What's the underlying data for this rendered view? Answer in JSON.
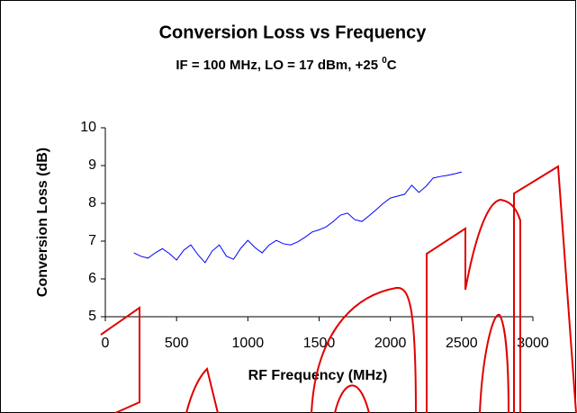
{
  "chart_data": {
    "type": "line",
    "title": "Conversion Loss vs Frequency",
    "subtitle": "IF = 100 MHz, LO = 17 dBm, +25 ",
    "subtitle_superscript": "0",
    "subtitle_end": "C",
    "x_label": "RF Frequency (MHz)",
    "y_label": "Conversion Loss (dB)",
    "x": [
      200,
      250,
      300,
      350,
      400,
      450,
      500,
      550,
      600,
      650,
      700,
      750,
      800,
      850,
      900,
      950,
      1000,
      1050,
      1100,
      1150,
      1200,
      1250,
      1300,
      1350,
      1400,
      1450,
      1500,
      1550,
      1600,
      1650,
      1700,
      1750,
      1800,
      1850,
      1900,
      1950,
      2000,
      2050,
      2100,
      2150,
      2200,
      2250,
      2300,
      2350,
      2400,
      2450,
      2500
    ],
    "series": [
      {
        "color": "#0000ff",
        "values": [
          6.69,
          6.6,
          6.55,
          6.69,
          6.8,
          6.67,
          6.5,
          6.76,
          6.9,
          6.64,
          6.43,
          6.74,
          6.9,
          6.6,
          6.52,
          6.81,
          7.02,
          6.83,
          6.69,
          6.9,
          7.02,
          6.93,
          6.9,
          6.98,
          7.1,
          7.24,
          7.3,
          7.38,
          7.52,
          7.69,
          7.74,
          7.57,
          7.52,
          7.67,
          7.83,
          8.0,
          8.14,
          8.19,
          8.24,
          8.48,
          8.29,
          8.45,
          8.67,
          8.71,
          8.74,
          8.78,
          8.83
        ]
      }
    ],
    "xlim": [
      0,
      3000
    ],
    "xticks": [
      0,
      500,
      1000,
      1500,
      2000,
      2500,
      3000
    ],
    "ylim": [
      5,
      10
    ],
    "yticks": [
      5,
      6,
      7,
      8,
      9,
      10
    ]
  }
}
